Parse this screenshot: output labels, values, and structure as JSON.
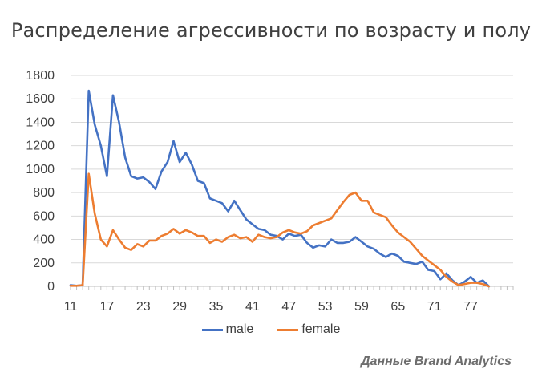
{
  "title": "Распределение агрессивности по возрасту и полу",
  "source_note": "Данные Brand Analytics",
  "colors": {
    "male": "#4472c4",
    "female": "#ed7d31",
    "grid": "#d9d9d9",
    "axis": "#bfbfbf",
    "text": "#404040"
  },
  "chart_data": {
    "type": "line",
    "title": "Распределение агрессивности по возрасту и полу",
    "xlabel": "",
    "ylabel": "",
    "x": [
      11,
      12,
      13,
      14,
      15,
      16,
      17,
      18,
      19,
      20,
      21,
      22,
      23,
      24,
      25,
      26,
      27,
      28,
      29,
      30,
      31,
      32,
      33,
      34,
      35,
      36,
      37,
      38,
      39,
      40,
      41,
      42,
      43,
      44,
      45,
      46,
      47,
      48,
      49,
      50,
      51,
      52,
      53,
      54,
      55,
      56,
      57,
      58,
      59,
      60,
      61,
      62,
      63,
      64,
      65,
      66,
      67,
      68,
      69,
      70,
      71,
      72,
      73,
      74,
      75,
      76,
      77,
      78,
      79,
      80
    ],
    "x_ticks": [
      11,
      17,
      23,
      29,
      35,
      41,
      47,
      53,
      59,
      65,
      71,
      77
    ],
    "xlim": [
      11,
      84
    ],
    "ylim": [
      0,
      1800
    ],
    "y_ticks": [
      0,
      200,
      400,
      600,
      800,
      1000,
      1200,
      1400,
      1600,
      1800
    ],
    "grid": true,
    "legend_position": "bottom",
    "series": [
      {
        "name": "male",
        "values": [
          10,
          5,
          10,
          1670,
          1380,
          1200,
          940,
          1630,
          1400,
          1100,
          940,
          920,
          930,
          890,
          830,
          980,
          1060,
          1240,
          1060,
          1140,
          1040,
          900,
          880,
          750,
          730,
          710,
          640,
          730,
          650,
          570,
          530,
          490,
          480,
          440,
          430,
          400,
          450,
          430,
          440,
          370,
          330,
          350,
          340,
          400,
          370,
          370,
          380,
          420,
          380,
          340,
          320,
          280,
          250,
          280,
          260,
          210,
          200,
          190,
          210,
          140,
          130,
          60,
          110,
          50,
          10,
          40,
          80,
          30,
          50,
          0
        ]
      },
      {
        "name": "female",
        "values": [
          5,
          5,
          10,
          960,
          620,
          400,
          340,
          480,
          400,
          330,
          310,
          360,
          340,
          390,
          390,
          430,
          450,
          490,
          450,
          480,
          460,
          430,
          430,
          370,
          400,
          380,
          420,
          440,
          410,
          420,
          380,
          440,
          420,
          410,
          420,
          460,
          480,
          460,
          450,
          470,
          520,
          540,
          560,
          580,
          650,
          720,
          780,
          800,
          730,
          730,
          630,
          610,
          590,
          520,
          460,
          420,
          380,
          320,
          260,
          220,
          180,
          140,
          80,
          40,
          10,
          20,
          30,
          30,
          20,
          0
        ]
      }
    ]
  }
}
